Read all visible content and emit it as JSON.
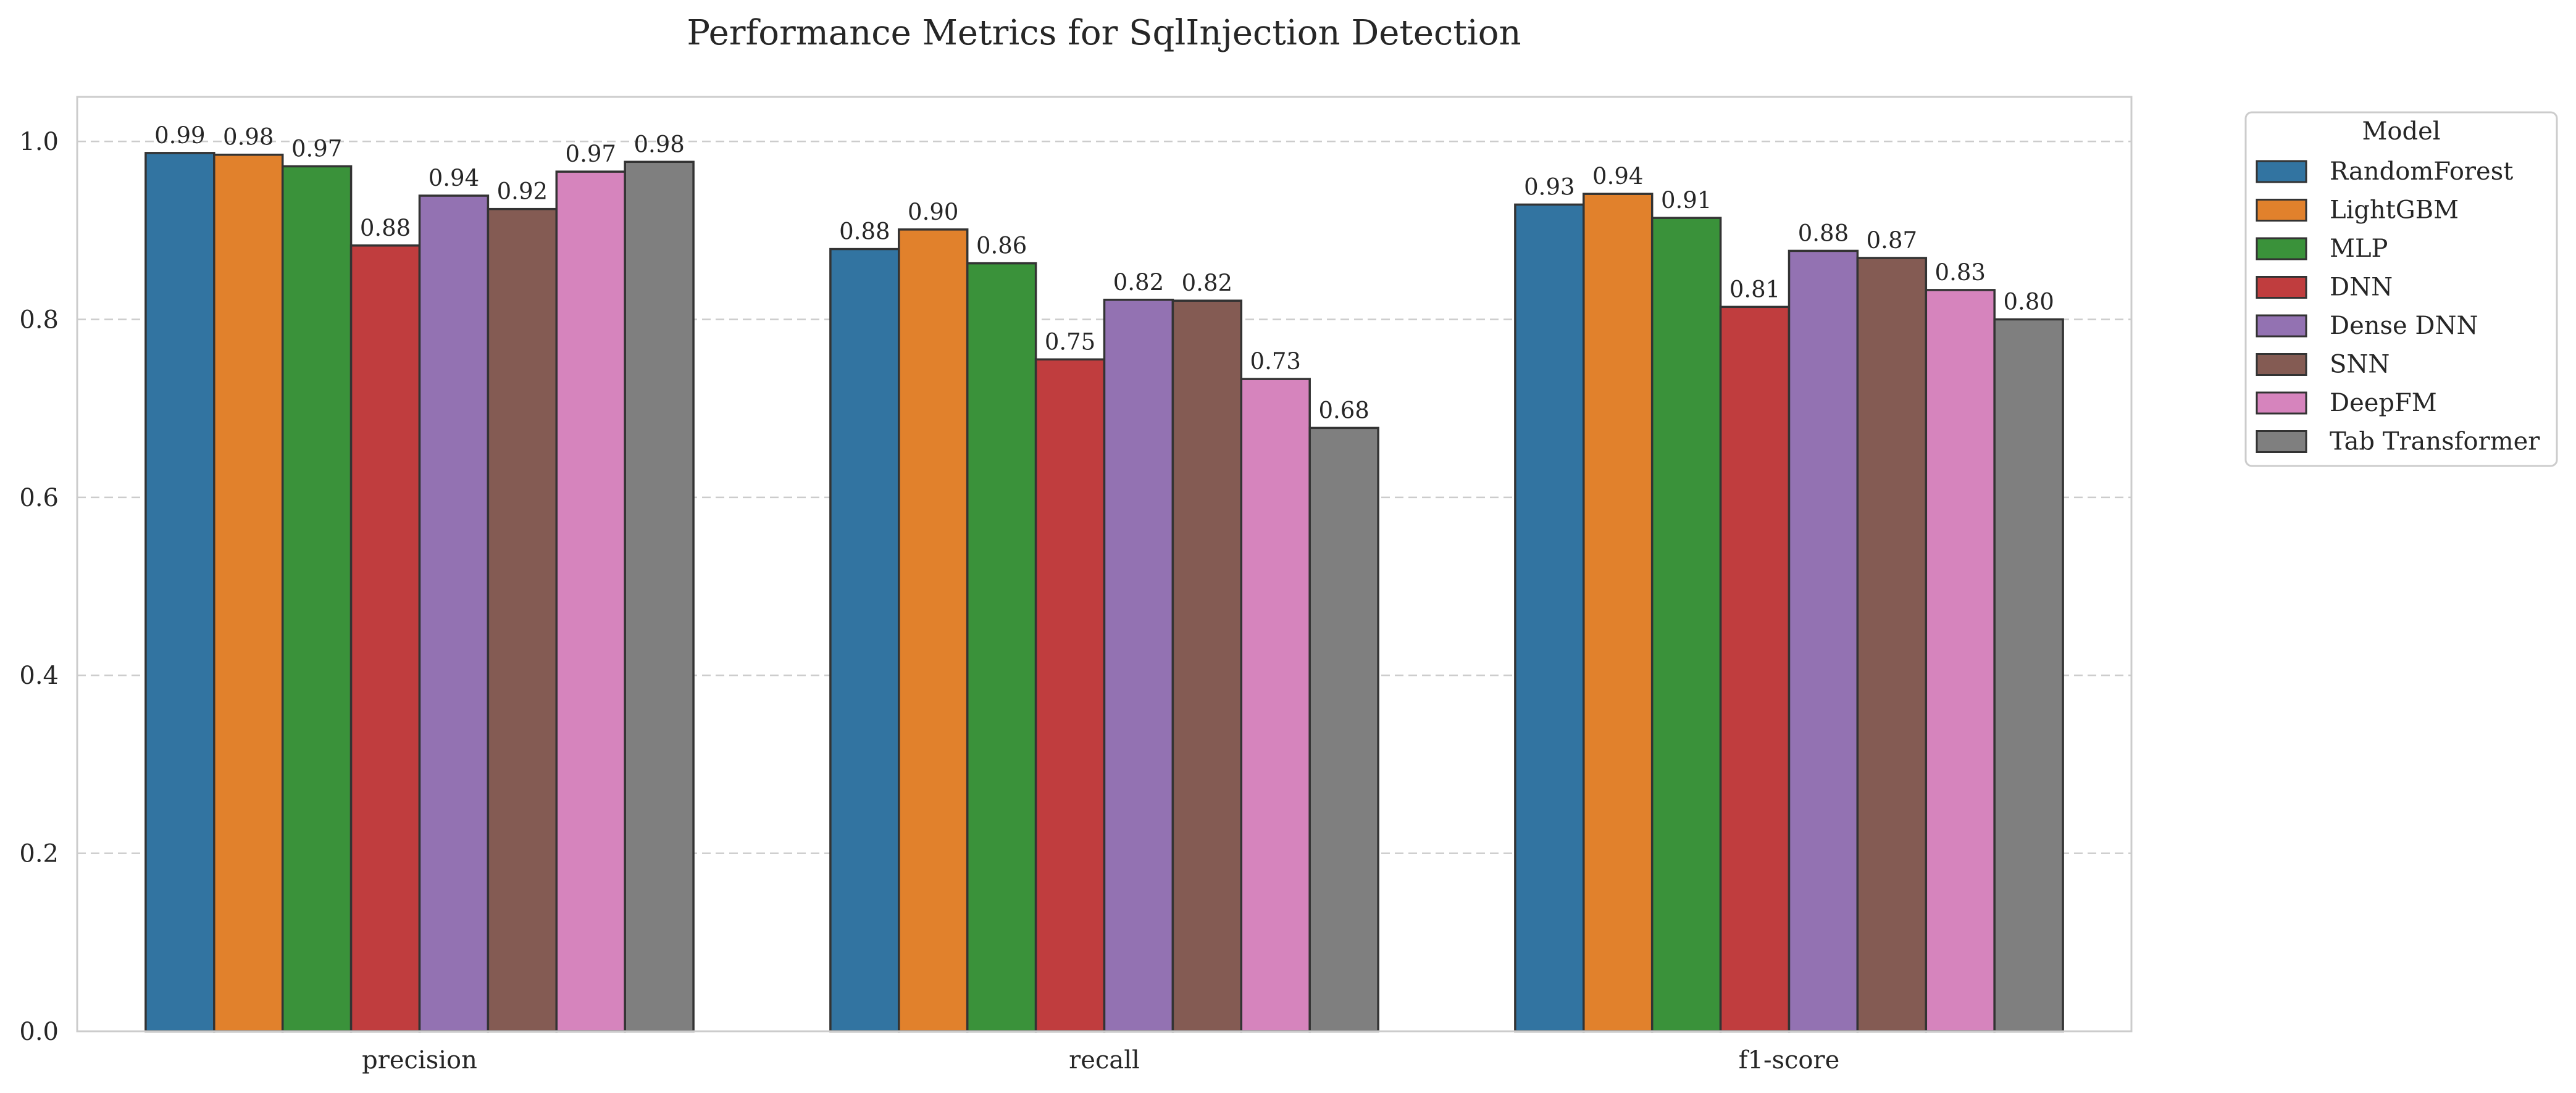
{
  "chart_data": {
    "type": "bar",
    "title": "Performance Metrics for SqlInjection Detection",
    "xlabel": "",
    "ylabel": "",
    "categories": [
      "precision",
      "recall",
      "f1-score"
    ],
    "ylim": [
      0,
      1.05
    ],
    "yticks": [
      "0.0",
      "0.2",
      "0.4",
      "0.6",
      "0.8",
      "1.0"
    ],
    "grid": "y-dashed",
    "legend": {
      "title": "Model",
      "placement": "outside-top-right"
    },
    "series": [
      {
        "name": "RandomForest",
        "color": "#3274a1",
        "values": [
          0.987,
          0.879,
          0.929
        ],
        "labels": [
          "0.99",
          "0.88",
          "0.93"
        ]
      },
      {
        "name": "LightGBM",
        "color": "#e1812c",
        "values": [
          0.985,
          0.901,
          0.941
        ],
        "labels": [
          "0.98",
          "0.90",
          "0.94"
        ]
      },
      {
        "name": "MLP",
        "color": "#3a923a",
        "values": [
          0.972,
          0.863,
          0.914
        ],
        "labels": [
          "0.97",
          "0.86",
          "0.91"
        ]
      },
      {
        "name": "DNN",
        "color": "#c03d3e",
        "values": [
          0.883,
          0.755,
          0.814
        ],
        "labels": [
          "0.88",
          "0.75",
          "0.81"
        ]
      },
      {
        "name": "Dense DNN",
        "color": "#9372b2",
        "values": [
          0.939,
          0.822,
          0.877
        ],
        "labels": [
          "0.94",
          "0.82",
          "0.88"
        ]
      },
      {
        "name": "SNN",
        "color": "#845b53",
        "values": [
          0.924,
          0.821,
          0.869
        ],
        "labels": [
          "0.92",
          "0.82",
          "0.87"
        ]
      },
      {
        "name": "DeepFM",
        "color": "#d684bd",
        "values": [
          0.966,
          0.733,
          0.833
        ],
        "labels": [
          "0.97",
          "0.73",
          "0.83"
        ]
      },
      {
        "name": "Tab Transformer",
        "color": "#7f7f7f",
        "values": [
          0.977,
          0.678,
          0.8
        ],
        "labels": [
          "0.98",
          "0.68",
          "0.80"
        ]
      }
    ]
  }
}
